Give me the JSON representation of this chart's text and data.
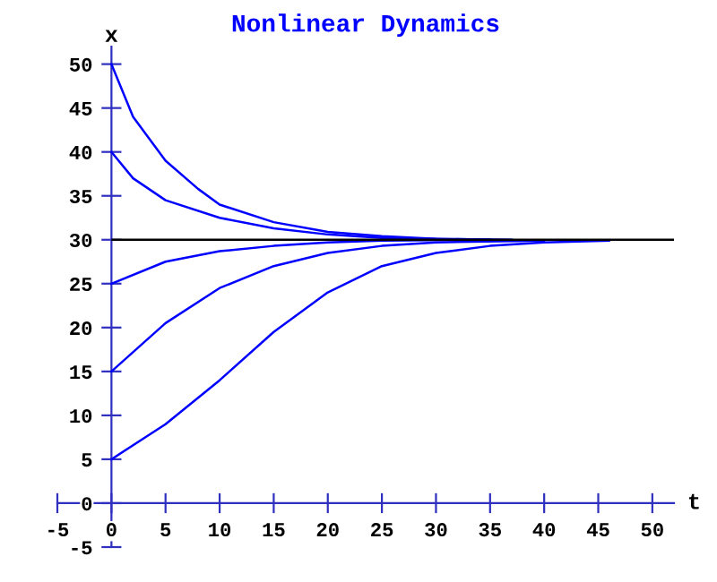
{
  "chart_data": {
    "type": "line",
    "title": "Nonlinear Dynamics",
    "xlabel": "t",
    "ylabel": "x",
    "series": [
      {
        "color": "#0000ff",
        "x": [
          0,
          5,
          10,
          15,
          20,
          25,
          30,
          35,
          40,
          46
        ],
        "values": [
          5,
          9,
          14,
          19.5,
          24,
          27,
          28.5,
          29.3,
          29.7,
          29.9
        ]
      },
      {
        "color": "#0000ff",
        "x": [
          0,
          5,
          10,
          15,
          20,
          25,
          30,
          40
        ],
        "values": [
          15,
          20.5,
          24.5,
          27,
          28.5,
          29.3,
          29.7,
          29.9
        ]
      },
      {
        "color": "#0000ff",
        "x": [
          0,
          5,
          10,
          15,
          20,
          25,
          35
        ],
        "values": [
          25,
          27.5,
          28.7,
          29.3,
          29.7,
          29.9,
          30
        ]
      },
      {
        "color": "#0000ff",
        "x": [
          0,
          2,
          5,
          10,
          15,
          20,
          25,
          30,
          35
        ],
        "values": [
          40,
          37,
          34.5,
          32.5,
          31.3,
          30.6,
          30.2,
          30.1,
          30
        ]
      },
      {
        "color": "#0000ff",
        "x": [
          0,
          2,
          5,
          8,
          10,
          15,
          20,
          25,
          30,
          37
        ],
        "values": [
          50,
          44,
          39,
          35.8,
          34,
          32,
          30.9,
          30.4,
          30.1,
          30
        ]
      }
    ],
    "ref_lines": [
      {
        "axis": "y",
        "value": 30,
        "color": "#000000"
      }
    ],
    "xlim": [
      -5,
      52
    ],
    "ylim": [
      -5,
      52
    ],
    "xticks": [
      -5,
      0,
      5,
      10,
      15,
      20,
      25,
      30,
      35,
      40,
      45,
      50
    ],
    "yticks": [
      -5,
      0,
      5,
      10,
      15,
      20,
      25,
      30,
      35,
      40,
      45,
      50
    ],
    "grid": false,
    "legend": false
  }
}
